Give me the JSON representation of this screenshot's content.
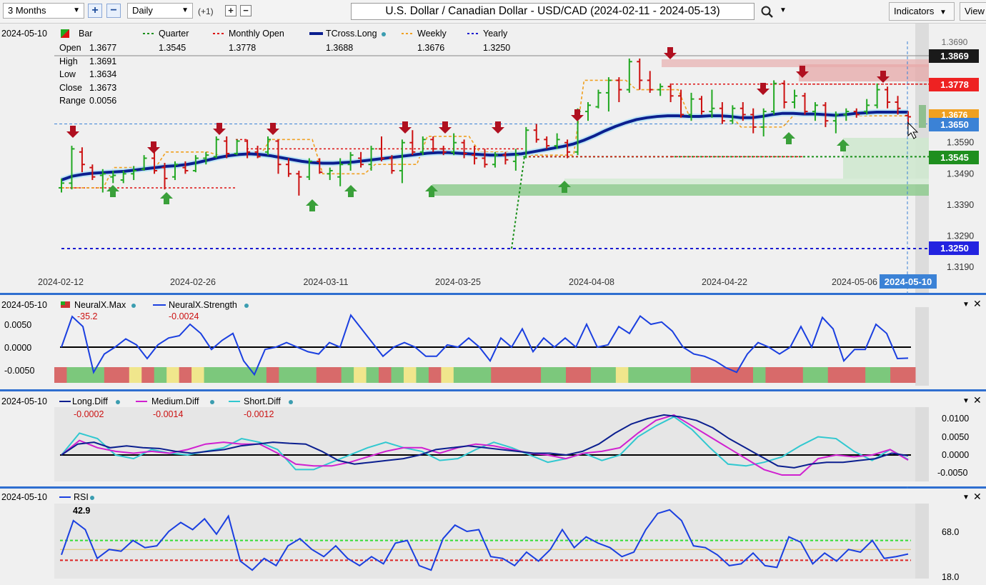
{
  "toolbar": {
    "range": "3 Months",
    "interval": "Daily",
    "plus_one": "(+1)",
    "title": "U.S. Dollar / Canadian Dollar - USD/CAD (2024-02-11 - 2024-05-13)",
    "indicators": "Indicators",
    "view": "View"
  },
  "legend": {
    "date": "2024-05-10",
    "bar": "Bar",
    "open_label": "Open",
    "open": "1.3677",
    "high_label": "High",
    "high": "1.3691",
    "low_label": "Low",
    "low": "1.3634",
    "close_label": "Close",
    "close": "1.3673",
    "range_label": "Range",
    "range": "0.0056",
    "quarter_label": "Quarter",
    "quarter": "1.3545",
    "monthly_label": "Monthly Open",
    "monthly": "1.3778",
    "tcross_label": "TCross.Long",
    "tcross": "1.3688",
    "weekly_label": "Weekly",
    "weekly": "1.3676",
    "yearly_label": "Yearly",
    "yearly": "1.3250"
  },
  "price_tags": {
    "top": "1.3869",
    "monthly": "1.3778",
    "weekly": "1.3676",
    "current": "1.3650",
    "quarter": "1.3545",
    "yearly": "1.3250",
    "top_partial": "1.3690"
  },
  "colors": {
    "up": "#22a822",
    "down": "#cc1111",
    "tcross": "#0b1f8f",
    "weekly": "#f0a020",
    "quarter": "#1a8f1a",
    "monthly": "#dd1111",
    "yearly": "#1a1ad0",
    "tag_top": "#1a1a1a",
    "tag_monthly": "#ee2222",
    "tag_weekly": "#f0a020",
    "tag_current": "#3b82d6",
    "tag_quarter": "#1f8f1f",
    "tag_yearly": "#2323e0",
    "neural_strength": "#1a3fe0",
    "long_diff": "#0b1f8f",
    "medium_diff": "#d020d0",
    "short_diff": "#30c8d0",
    "rsi": "#1a3fe0"
  },
  "neural": {
    "date": "2024-05-10",
    "max_label": "NeuralX.Max",
    "max": "-35.2",
    "strength_label": "NeuralX.Strength",
    "strength": "-0.0024",
    "axis": [
      "0.0050",
      "0.0000",
      "-0.0050"
    ]
  },
  "diff": {
    "date": "2024-05-10",
    "long_label": "Long.Diff",
    "long": "-0.0002",
    "medium_label": "Medium.Diff",
    "medium": "-0.0014",
    "short_label": "Short.Diff",
    "short": "-0.0012",
    "axis": [
      "0.0100",
      "0.0050",
      "0.0000",
      "-0.0050"
    ]
  },
  "rsi": {
    "date": "2024-05-10",
    "label": "RSI",
    "value": "42.9",
    "axis": [
      "68.0",
      "18.0"
    ]
  },
  "chart_data": {
    "type": "bar",
    "title": "U.S. Dollar / Canadian Dollar - USD/CAD (2024-02-11 - 2024-05-13)",
    "x_ticks": [
      "2024-02-12",
      "2024-02-26",
      "2024-03-11",
      "2024-03-25",
      "2024-04-08",
      "2024-04-22",
      "2024-05-06"
    ],
    "current_date": "2024-05-10",
    "y_ticks": [
      "1.3590",
      "1.3490",
      "1.3390",
      "1.3290",
      "1.3190"
    ],
    "ylim": [
      1.3165,
      1.3885
    ],
    "levels": {
      "quarter": 1.3545,
      "monthly_open": 1.3778,
      "yearly": 1.325,
      "weekly": 1.3676,
      "tcross_long": 1.3688
    },
    "ohlc": [
      [
        1.3445,
        1.3475,
        1.343,
        1.346
      ],
      [
        1.346,
        1.358,
        1.344,
        1.357
      ],
      [
        1.356,
        1.3575,
        1.3495,
        1.352
      ],
      [
        1.351,
        1.352,
        1.347,
        1.348
      ],
      [
        1.3485,
        1.3505,
        1.343,
        1.349
      ],
      [
        1.348,
        1.35,
        1.346,
        1.3485
      ],
      [
        1.347,
        1.35,
        1.346,
        1.349
      ],
      [
        1.349,
        1.3515,
        1.347,
        1.35
      ],
      [
        1.3505,
        1.355,
        1.35,
        1.354
      ],
      [
        1.354,
        1.356,
        1.349,
        1.35
      ],
      [
        1.351,
        1.3525,
        1.344,
        1.3475
      ],
      [
        1.348,
        1.353,
        1.347,
        1.352
      ],
      [
        1.351,
        1.353,
        1.349,
        1.35
      ],
      [
        1.35,
        1.355,
        1.3495,
        1.354
      ],
      [
        1.354,
        1.356,
        1.352,
        1.355
      ],
      [
        1.3545,
        1.361,
        1.354,
        1.36
      ],
      [
        1.3595,
        1.361,
        1.354,
        1.3555
      ],
      [
        1.3555,
        1.36,
        1.355,
        1.3595
      ],
      [
        1.3595,
        1.36,
        1.354,
        1.356
      ],
      [
        1.356,
        1.358,
        1.354,
        1.3545
      ],
      [
        1.356,
        1.361,
        1.355,
        1.36
      ],
      [
        1.3595,
        1.36,
        1.349,
        1.352
      ],
      [
        1.352,
        1.354,
        1.348,
        1.349
      ],
      [
        1.349,
        1.35,
        1.342,
        1.348
      ],
      [
        1.348,
        1.354,
        1.347,
        1.353
      ],
      [
        1.353,
        1.354,
        1.349,
        1.3495
      ],
      [
        1.349,
        1.351,
        1.347,
        1.35
      ],
      [
        1.348,
        1.354,
        1.345,
        1.352
      ],
      [
        1.352,
        1.356,
        1.35,
        1.355
      ],
      [
        1.354,
        1.356,
        1.351,
        1.352
      ],
      [
        1.352,
        1.358,
        1.35,
        1.357
      ],
      [
        1.357,
        1.361,
        1.353,
        1.354
      ],
      [
        1.354,
        1.355,
        1.349,
        1.35
      ],
      [
        1.35,
        1.36,
        1.346,
        1.359
      ],
      [
        1.359,
        1.363,
        1.355,
        1.356
      ],
      [
        1.356,
        1.361,
        1.355,
        1.36
      ],
      [
        1.36,
        1.361,
        1.356,
        1.357
      ],
      [
        1.357,
        1.358,
        1.355,
        1.356
      ],
      [
        1.356,
        1.362,
        1.355,
        1.359
      ],
      [
        1.359,
        1.36,
        1.354,
        1.3555
      ],
      [
        1.355,
        1.358,
        1.352,
        1.354
      ],
      [
        1.354,
        1.357,
        1.351,
        1.352
      ],
      [
        1.352,
        1.356,
        1.351,
        1.355
      ],
      [
        1.355,
        1.356,
        1.352,
        1.3535
      ],
      [
        1.353,
        1.357,
        1.35,
        1.355
      ],
      [
        1.3545,
        1.364,
        1.354,
        1.363
      ],
      [
        1.363,
        1.365,
        1.359,
        1.36
      ],
      [
        1.36,
        1.361,
        1.357,
        1.358
      ],
      [
        1.358,
        1.362,
        1.357,
        1.36
      ],
      [
        1.359,
        1.36,
        1.354,
        1.356
      ],
      [
        1.356,
        1.37,
        1.355,
        1.369
      ],
      [
        1.369,
        1.372,
        1.366,
        1.371
      ],
      [
        1.3705,
        1.376,
        1.37,
        1.375
      ],
      [
        1.375,
        1.38,
        1.369,
        1.379
      ],
      [
        1.379,
        1.38,
        1.372,
        1.376
      ],
      [
        1.376,
        1.386,
        1.375,
        1.385
      ],
      [
        1.385,
        1.386,
        1.376,
        1.379
      ],
      [
        1.379,
        1.382,
        1.375,
        1.376
      ],
      [
        1.376,
        1.378,
        1.374,
        1.377
      ],
      [
        1.377,
        1.378,
        1.372,
        1.374
      ],
      [
        1.374,
        1.376,
        1.367,
        1.368
      ],
      [
        1.368,
        1.375,
        1.366,
        1.373
      ],
      [
        1.373,
        1.374,
        1.368,
        1.369
      ],
      [
        1.369,
        1.376,
        1.367,
        1.37
      ],
      [
        1.37,
        1.372,
        1.365,
        1.366
      ],
      [
        1.366,
        1.371,
        1.365,
        1.37
      ],
      [
        1.37,
        1.372,
        1.366,
        1.368
      ],
      [
        1.368,
        1.37,
        1.362,
        1.364
      ],
      [
        1.364,
        1.37,
        1.361,
        1.369
      ],
      [
        1.369,
        1.379,
        1.368,
        1.378
      ],
      [
        1.378,
        1.379,
        1.37,
        1.372
      ],
      [
        1.372,
        1.376,
        1.37,
        1.374
      ],
      [
        1.374,
        1.375,
        1.368,
        1.369
      ],
      [
        1.369,
        1.372,
        1.366,
        1.371
      ],
      [
        1.371,
        1.372,
        1.364,
        1.366
      ],
      [
        1.366,
        1.369,
        1.362,
        1.368
      ],
      [
        1.368,
        1.37,
        1.366,
        1.369
      ],
      [
        1.369,
        1.37,
        1.367,
        1.368
      ],
      [
        1.369,
        1.373,
        1.368,
        1.371
      ],
      [
        1.371,
        1.378,
        1.37,
        1.376
      ],
      [
        1.376,
        1.377,
        1.37,
        1.372
      ],
      [
        1.372,
        1.374,
        1.368,
        1.37
      ],
      [
        1.3677,
        1.3691,
        1.3634,
        1.3673
      ]
    ],
    "tcross_long": [
      1.347,
      1.3482,
      1.3488,
      1.3492,
      1.3494,
      1.3496,
      1.3498,
      1.3502,
      1.3506,
      1.351,
      1.3514,
      1.3516,
      1.352,
      1.3526,
      1.3534,
      1.3542,
      1.3548,
      1.3552,
      1.3554,
      1.3552,
      1.3548,
      1.3542,
      1.3536,
      1.353,
      1.3526,
      1.3524,
      1.3524,
      1.3526,
      1.3528,
      1.3532,
      1.3536,
      1.354,
      1.3544,
      1.3548,
      1.3552,
      1.3556,
      1.3558,
      1.3558,
      1.3556,
      1.3554,
      1.3552,
      1.355,
      1.355,
      1.3552,
      1.3554,
      1.356,
      1.3566,
      1.3572,
      1.3578,
      1.3586,
      1.3598,
      1.3612,
      1.3628,
      1.3642,
      1.3654,
      1.3664,
      1.367,
      1.3674,
      1.3676,
      1.3676,
      1.3674,
      1.3674,
      1.3676,
      1.3676,
      1.3674,
      1.367,
      1.367,
      1.3674,
      1.368,
      1.3684,
      1.3684,
      1.3682,
      1.3682,
      1.368,
      1.3678,
      1.368,
      1.3684,
      1.3686,
      1.3688,
      1.3688,
      1.3688,
      1.3688
    ],
    "weekly_open": [
      1.3445,
      1.3445,
      1.3445,
      1.3445,
      1.3445,
      1.351,
      1.351,
      1.351,
      1.351,
      1.351,
      1.356,
      1.356,
      1.356,
      1.356,
      1.356,
      1.355,
      1.355,
      1.355,
      1.355,
      1.355,
      1.36,
      1.36,
      1.36,
      1.36,
      1.36,
      1.349,
      1.349,
      1.349,
      1.349,
      1.349,
      1.352,
      1.352,
      1.352,
      1.352,
      1.352,
      1.361,
      1.361,
      1.361,
      1.361,
      1.361,
      1.356,
      1.356,
      1.356,
      1.356,
      1.356,
      1.355,
      1.355,
      1.355,
      1.355,
      1.355,
      1.379,
      1.379,
      1.379,
      1.379,
      1.379,
      1.376,
      1.376,
      1.376,
      1.376,
      1.376,
      1.368,
      1.368,
      1.368,
      1.368,
      1.368,
      1.364,
      1.364,
      1.364,
      1.364,
      1.364,
      1.3676,
      1.3676,
      1.3676,
      1.3676,
      1.3676,
      1.3676,
      1.3676,
      1.3676,
      1.3676,
      1.3676,
      1.3676,
      1.3676
    ],
    "neural_strength": [
      0.0,
      0.0067,
      0.0045,
      -0.0055,
      -0.0015,
      0.0,
      0.0018,
      0.0005,
      -0.0025,
      0.0005,
      0.002,
      0.0025,
      0.005,
      0.003,
      -0.0005,
      0.0015,
      0.003,
      -0.003,
      -0.006,
      -0.0005,
      0.0,
      0.001,
      0.0,
      -0.001,
      -0.0015,
      0.001,
      0.0,
      0.007,
      0.004,
      0.001,
      -0.002,
      0.0,
      0.001,
      0.0,
      -0.002,
      -0.002,
      0.0005,
      0.0,
      0.002,
      0.0,
      -0.003,
      0.002,
      0.0,
      0.004,
      -0.001,
      0.002,
      0.0,
      0.002,
      0.0,
      0.005,
      0.0,
      0.0005,
      0.0045,
      0.003,
      0.0068,
      0.005,
      0.0055,
      0.0035,
      0.0,
      -0.0015,
      -0.002,
      -0.003,
      -0.0045,
      -0.0055,
      -0.0015,
      0.001,
      0.0,
      -0.0015,
      0.0,
      0.0045,
      0.0,
      0.0065,
      0.004,
      -0.003,
      -0.0005,
      -0.0005,
      0.005,
      0.003,
      -0.0025,
      -0.0024
    ],
    "neural_max_colors": [
      "r",
      "g",
      "g",
      "g",
      "r",
      "r",
      "y",
      "r",
      "g",
      "y",
      "r",
      "y",
      "g",
      "g",
      "g",
      "g",
      "g",
      "r",
      "g",
      "g",
      "g",
      "r",
      "r",
      "g",
      "y",
      "g",
      "r",
      "g",
      "y",
      "g",
      "r",
      "y",
      "g",
      "g",
      "g",
      "r",
      "r",
      "r",
      "r",
      "g",
      "g",
      "r",
      "r",
      "g",
      "g",
      "y",
      "g",
      "g",
      "g",
      "g",
      "g",
      "r",
      "r",
      "r",
      "r",
      "r",
      "g",
      "r",
      "r",
      "r",
      "g",
      "g",
      "r",
      "r",
      "r",
      "g",
      "g",
      "r",
      "r"
    ],
    "long_diff": [
      0.0,
      0.003,
      0.0035,
      0.002,
      0.0025,
      0.002,
      0.0018,
      0.001,
      0.0005,
      0.001,
      0.0015,
      0.0025,
      0.003,
      0.0035,
      0.0032,
      0.003,
      0.001,
      -0.0015,
      -0.0025,
      -0.002,
      -0.0015,
      -0.001,
      0.0,
      0.0015,
      0.002,
      0.0025,
      0.002,
      0.0015,
      0.001,
      0.0005,
      0.0005,
      0.0,
      0.001,
      0.003,
      0.006,
      0.0085,
      0.01,
      0.011,
      0.0105,
      0.0095,
      0.0075,
      0.0045,
      0.002,
      -0.0005,
      -0.003,
      -0.0035,
      -0.0025,
      -0.002,
      -0.002,
      -0.0015,
      -0.001,
      0.0005,
      -0.0002
    ],
    "medium_diff": [
      0.0,
      0.004,
      0.002,
      0.001,
      0.0005,
      0.001,
      0.0005,
      0.0015,
      0.003,
      0.0035,
      0.003,
      0.003,
      0.0005,
      -0.0025,
      -0.003,
      -0.003,
      -0.002,
      -0.0005,
      0.001,
      0.002,
      0.002,
      0.0005,
      0.002,
      0.003,
      0.0025,
      0.0015,
      0.0005,
      0.0,
      -0.001,
      0.0005,
      0.001,
      0.002,
      0.006,
      0.0095,
      0.011,
      0.008,
      0.005,
      0.002,
      -0.001,
      -0.004,
      -0.0055,
      -0.0055,
      -0.001,
      0.0,
      -0.0005,
      0.0,
      0.0015,
      -0.0014
    ],
    "short_diff": [
      0.0,
      0.006,
      0.0045,
      0.0,
      -0.001,
      0.0015,
      0.0005,
      0.0,
      0.001,
      0.002,
      0.0045,
      0.0035,
      0.0015,
      -0.004,
      -0.004,
      -0.002,
      0.0,
      0.002,
      0.0035,
      0.002,
      0.001,
      -0.0015,
      -0.001,
      0.0015,
      0.0035,
      0.002,
      0.0,
      -0.002,
      -0.001,
      0.0005,
      -0.0015,
      0.0,
      0.005,
      0.008,
      0.0105,
      0.007,
      0.002,
      -0.0025,
      -0.003,
      -0.002,
      -0.0005,
      0.0025,
      0.005,
      0.0045,
      0.001,
      -0.0015,
      0.0015,
      -0.0012
    ],
    "rsi": [
      42,
      80,
      70,
      38,
      48,
      46,
      58,
      50,
      52,
      68,
      78,
      70,
      82,
      65,
      85,
      35,
      25,
      38,
      30,
      52,
      60,
      48,
      40,
      52,
      38,
      30,
      40,
      32,
      55,
      58,
      30,
      25,
      60,
      75,
      68,
      70,
      40,
      38,
      30,
      45,
      35,
      48,
      70,
      50,
      62,
      55,
      50,
      40,
      45,
      70,
      88,
      92,
      80,
      52,
      50,
      42,
      30,
      32,
      44,
      30,
      28,
      62,
      56,
      32,
      44,
      35,
      48,
      45,
      58,
      38,
      40,
      42.9
    ],
    "rsi_levels": {
      "upper": 58,
      "mid": 48,
      "lower": 36
    }
  }
}
